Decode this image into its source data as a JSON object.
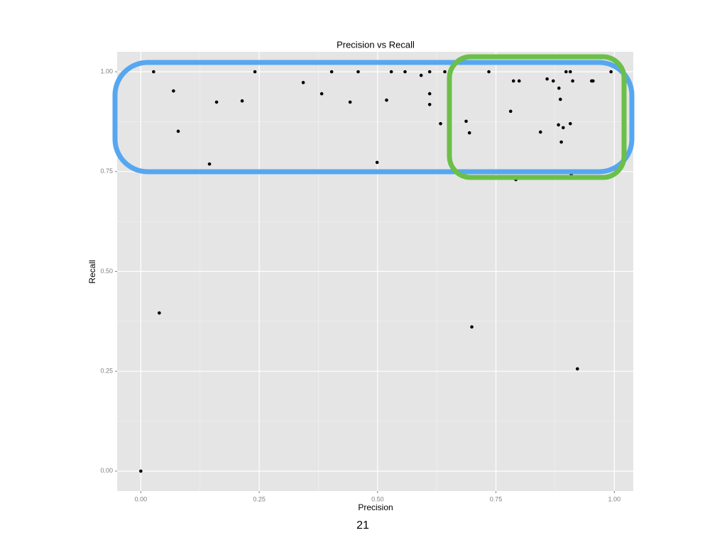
{
  "chart_data": {
    "type": "scatter",
    "title": "Precision vs Recall",
    "x_label": "Precision",
    "y_label": "Recall",
    "color": "#000000",
    "grid": true,
    "xlim": [
      -0.05,
      1.04
    ],
    "ylim": [
      -0.05,
      1.05
    ],
    "xticks": [
      {
        "value": 0,
        "label": "0.00"
      },
      {
        "value": 0.25,
        "label": "0.25"
      },
      {
        "value": 0.5,
        "label": "0.50"
      },
      {
        "value": 0.75,
        "label": "0.75"
      },
      {
        "value": 1,
        "label": "1.00"
      }
    ],
    "yticks": [
      {
        "value": 0,
        "label": "0.00"
      },
      {
        "value": 0.25,
        "label": "0.25"
      },
      {
        "value": 0.5,
        "label": "0.50"
      },
      {
        "value": 0.75,
        "label": "0.75"
      },
      {
        "value": 1,
        "label": "1.00"
      }
    ],
    "x": [
      0,
      0.027,
      0.039,
      0.069,
      0.079,
      0.145,
      0.16,
      0.214,
      0.241,
      0.343,
      0.382,
      0.403,
      0.442,
      0.459,
      0.499,
      0.519,
      0.529,
      0.558,
      0.592,
      0.61,
      0.61,
      0.61,
      0.633,
      0.642,
      0.687,
      0.694,
      0.699,
      0.735,
      0.781,
      0.787,
      0.792,
      0.799,
      0.844,
      0.858,
      0.871,
      0.882,
      0.883,
      0.886,
      0.888,
      0.892,
      0.898,
      0.907,
      0.907,
      0.912,
      0.922,
      0.909,
      0.952,
      0.955,
      0.993
    ],
    "values": [
      0,
      1,
      0.396,
      0.952,
      0.851,
      0.769,
      0.924,
      0.927,
      1,
      0.973,
      0.945,
      1,
      0.924,
      1,
      0.773,
      0.929,
      1,
      1,
      0.991,
      1,
      0.945,
      0.918,
      0.87,
      1,
      0.876,
      0.847,
      0.361,
      1,
      0.901,
      0.977,
      0.73,
      0.977,
      0.849,
      0.982,
      0.977,
      0.867,
      0.959,
      0.931,
      0.824,
      0.86,
      1,
      1,
      0.87,
      0.977,
      0.256,
      0.742,
      0.977,
      0.977,
      1
    ]
  },
  "page_number": 21
}
